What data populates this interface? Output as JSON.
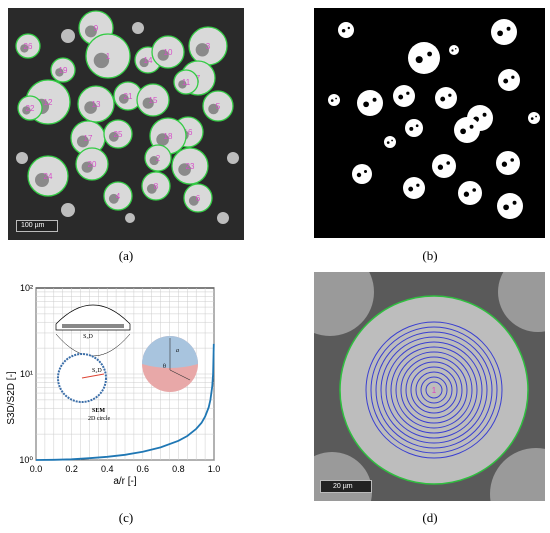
{
  "figure": {
    "captions": [
      "(a)",
      "(b)",
      "(c)",
      "(d)"
    ],
    "panel_a": {
      "scale_label": "100 µm",
      "particle_labels": [
        "9",
        "1",
        "3",
        "26",
        "14",
        "10",
        "7",
        "5",
        "12",
        "13",
        "21",
        "15",
        "11",
        "19",
        "16",
        "22",
        "17",
        "18",
        "25",
        "2",
        "23",
        "24",
        "20",
        "4",
        "8",
        "6"
      ]
    },
    "panel_d": {
      "scale_label": "20 µm",
      "center_label": "1"
    },
    "panel_c": {
      "inset_labels": {
        "s3d": "S₃D",
        "s2d": "S₂D",
        "r": "r",
        "sem": "SEM",
        "circle": "2D circle",
        "a": "a",
        "theta": "θ",
        "rho": "r"
      }
    }
  },
  "chart_data": {
    "type": "line",
    "xlabel": "a/r [-]",
    "ylabel": "S3D/S2D [-]",
    "xlim": [
      0.0,
      1.0
    ],
    "ylim": [
      1,
      100
    ],
    "yscale": "log",
    "grid": true,
    "x_ticks": [
      "0.0",
      "0.2",
      "0.4",
      "0.6",
      "0.8",
      "1.0"
    ],
    "y_ticks": [
      "10⁰",
      "10¹",
      "10²"
    ],
    "series": [
      {
        "color": "#1f77b4",
        "x": [
          0.0,
          0.1,
          0.2,
          0.3,
          0.4,
          0.5,
          0.6,
          0.7,
          0.8,
          0.85,
          0.9,
          0.93,
          0.95,
          0.97,
          0.98,
          0.99,
          0.995,
          0.999
        ],
        "y": [
          1.0,
          1.005,
          1.02,
          1.05,
          1.09,
          1.15,
          1.25,
          1.4,
          1.67,
          1.9,
          2.3,
          2.7,
          3.2,
          4.1,
          5.0,
          7.1,
          10.0,
          22.4
        ]
      }
    ]
  }
}
